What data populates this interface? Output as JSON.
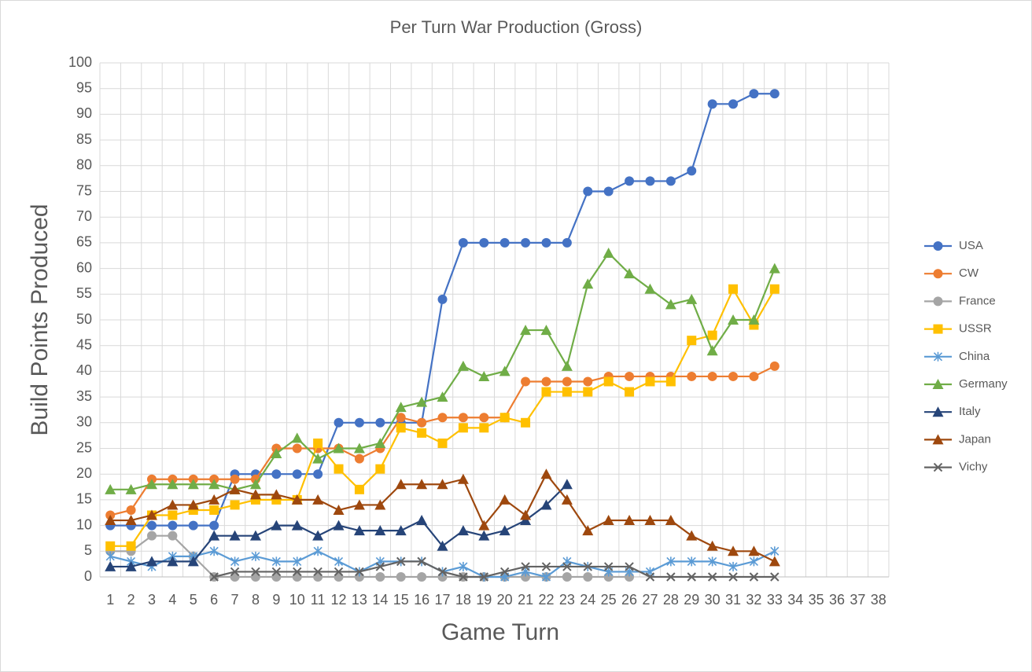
{
  "chart_data": {
    "type": "line",
    "title": "Per Turn War Production (Gross)",
    "x_label": "Game Turn",
    "y_label": "Build Points Produced",
    "categories": [
      1,
      2,
      3,
      4,
      5,
      6,
      7,
      8,
      9,
      10,
      11,
      12,
      13,
      14,
      15,
      16,
      17,
      18,
      19,
      20,
      21,
      22,
      23,
      24,
      25,
      26,
      27,
      28,
      29,
      30,
      31,
      32,
      33,
      34,
      35,
      36,
      37,
      38
    ],
    "ylim": [
      0,
      100
    ],
    "yticks": [
      0,
      5,
      10,
      15,
      20,
      25,
      30,
      35,
      40,
      45,
      50,
      55,
      60,
      65,
      70,
      75,
      80,
      85,
      90,
      95,
      100
    ],
    "grid": true,
    "legend": "right",
    "series": [
      {
        "name": "USA",
        "color": "#4472c4",
        "marker": "circle",
        "values": [
          10,
          10,
          10,
          10,
          10,
          10,
          20,
          20,
          20,
          20,
          20,
          30,
          30,
          30,
          30,
          30,
          54,
          65,
          65,
          65,
          65,
          65,
          65,
          75,
          75,
          77,
          77,
          77,
          79,
          92,
          92,
          94,
          94,
          null,
          null,
          null,
          null,
          null
        ]
      },
      {
        "name": "CW",
        "color": "#ed7d31",
        "marker": "circle",
        "values": [
          12,
          13,
          19,
          19,
          19,
          19,
          19,
          19,
          25,
          25,
          25,
          25,
          23,
          25,
          31,
          30,
          31,
          31,
          31,
          31,
          38,
          38,
          38,
          38,
          39,
          39,
          39,
          39,
          39,
          39,
          39,
          39,
          41,
          null,
          null,
          null,
          null,
          null
        ]
      },
      {
        "name": "France",
        "color": "#a5a5a5",
        "marker": "circle",
        "values": [
          5,
          5,
          8,
          8,
          4,
          0,
          0,
          0,
          0,
          0,
          0,
          0,
          0,
          0,
          0,
          0,
          0,
          0,
          0,
          0,
          0,
          0,
          0,
          0,
          0,
          0,
          null,
          null,
          null,
          null,
          null,
          null,
          null,
          null,
          null,
          null,
          null,
          null
        ]
      },
      {
        "name": "USSR",
        "color": "#ffc000",
        "marker": "square",
        "values": [
          6,
          6,
          12,
          12,
          13,
          13,
          14,
          15,
          15,
          15,
          26,
          21,
          17,
          21,
          29,
          28,
          26,
          29,
          29,
          31,
          30,
          36,
          36,
          36,
          38,
          36,
          38,
          38,
          46,
          47,
          56,
          49,
          56,
          null,
          null,
          null,
          null,
          null
        ]
      },
      {
        "name": "China",
        "color": "#5b9bd5",
        "marker": "star",
        "values": [
          4,
          3,
          2,
          4,
          4,
          5,
          3,
          4,
          3,
          3,
          5,
          3,
          1,
          3,
          3,
          3,
          1,
          2,
          0,
          0,
          1,
          0,
          3,
          2,
          1,
          1,
          1,
          3,
          3,
          3,
          2,
          3,
          5,
          null,
          null,
          null,
          null,
          null
        ]
      },
      {
        "name": "Germany",
        "color": "#70ad47",
        "marker": "triangle",
        "values": [
          17,
          17,
          18,
          18,
          18,
          18,
          17,
          18,
          24,
          27,
          23,
          25,
          25,
          26,
          33,
          34,
          35,
          41,
          39,
          40,
          48,
          48,
          41,
          57,
          63,
          59,
          56,
          53,
          54,
          44,
          50,
          50,
          60,
          null,
          null,
          null,
          null,
          null
        ]
      },
      {
        "name": "Italy",
        "color": "#264478",
        "marker": "triangle",
        "values": [
          2,
          2,
          3,
          3,
          3,
          8,
          8,
          8,
          10,
          10,
          8,
          10,
          9,
          9,
          9,
          11,
          6,
          9,
          8,
          9,
          11,
          14,
          18,
          null,
          null,
          null,
          null,
          null,
          null,
          null,
          null,
          null,
          null,
          null,
          null,
          null,
          null,
          null
        ]
      },
      {
        "name": "Japan",
        "color": "#9e480e",
        "marker": "triangle",
        "values": [
          11,
          11,
          12,
          14,
          14,
          15,
          17,
          16,
          16,
          15,
          15,
          13,
          14,
          14,
          18,
          18,
          18,
          19,
          10,
          15,
          12,
          20,
          15,
          9,
          11,
          11,
          11,
          11,
          8,
          6,
          5,
          5,
          3,
          null,
          null,
          null,
          null,
          null
        ]
      },
      {
        "name": "Vichy",
        "color": "#636363",
        "marker": "x",
        "values": [
          null,
          null,
          null,
          null,
          null,
          0,
          1,
          1,
          1,
          1,
          1,
          1,
          1,
          2,
          3,
          3,
          1,
          0,
          0,
          1,
          2,
          2,
          2,
          2,
          2,
          2,
          0,
          0,
          0,
          0,
          0,
          0,
          0,
          null,
          null,
          null,
          null,
          null
        ]
      }
    ]
  }
}
